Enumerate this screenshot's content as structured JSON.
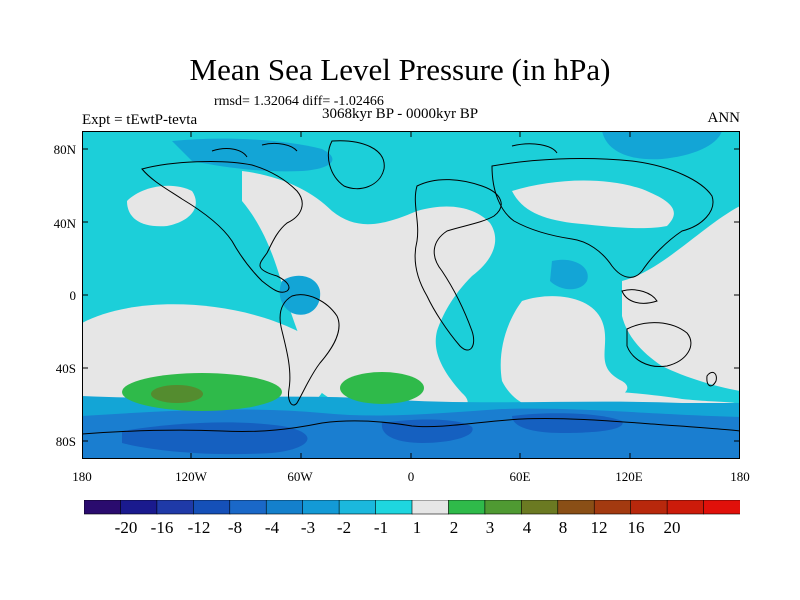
{
  "title": "Mean Sea Level Pressure (in hPa)",
  "stats": "rmsd= 1.32064  diff= -1.02466",
  "period": "3068kyr BP - 0000kyr BP",
  "experiment": "Expt = tEwtP-tevta",
  "season": "ANN",
  "map": {
    "lat_labels": [
      "80N",
      "40N",
      "0",
      "40S",
      "80S"
    ],
    "lon_labels": [
      "180",
      "120W",
      "60W",
      "0",
      "60E",
      "120E",
      "180"
    ],
    "colors": {
      "ocean_neutral": "#e6e6e6",
      "minus1_to_minus2": "#1ccfd9",
      "minus2_to_minus3": "#13a5d6",
      "minus3_to_minus4": "#1a7ed0",
      "minus4_to_minus8": "#1560c0",
      "plus1_to_plus2": "#2fba4a",
      "plus2_to_plus3": "#548c2f",
      "coastline": "#000000"
    }
  },
  "colorbar": {
    "labels": [
      "-20",
      "-16",
      "-12",
      "-8",
      "-4",
      "-3",
      "-2",
      "-1",
      "1",
      "2",
      "3",
      "4",
      "8",
      "12",
      "16",
      "20"
    ],
    "colors": [
      "#2a0b6e",
      "#1a1a8e",
      "#1f3aa8",
      "#1550b8",
      "#1a68c8",
      "#1480cc",
      "#139ad6",
      "#1bb8dd",
      "#1ed6df",
      "#e6e6e6",
      "#2fba4a",
      "#4f9a32",
      "#6b7a22",
      "#8a4f16",
      "#a33a10",
      "#b8280c",
      "#cc1b0a",
      "#e0100a"
    ]
  }
}
